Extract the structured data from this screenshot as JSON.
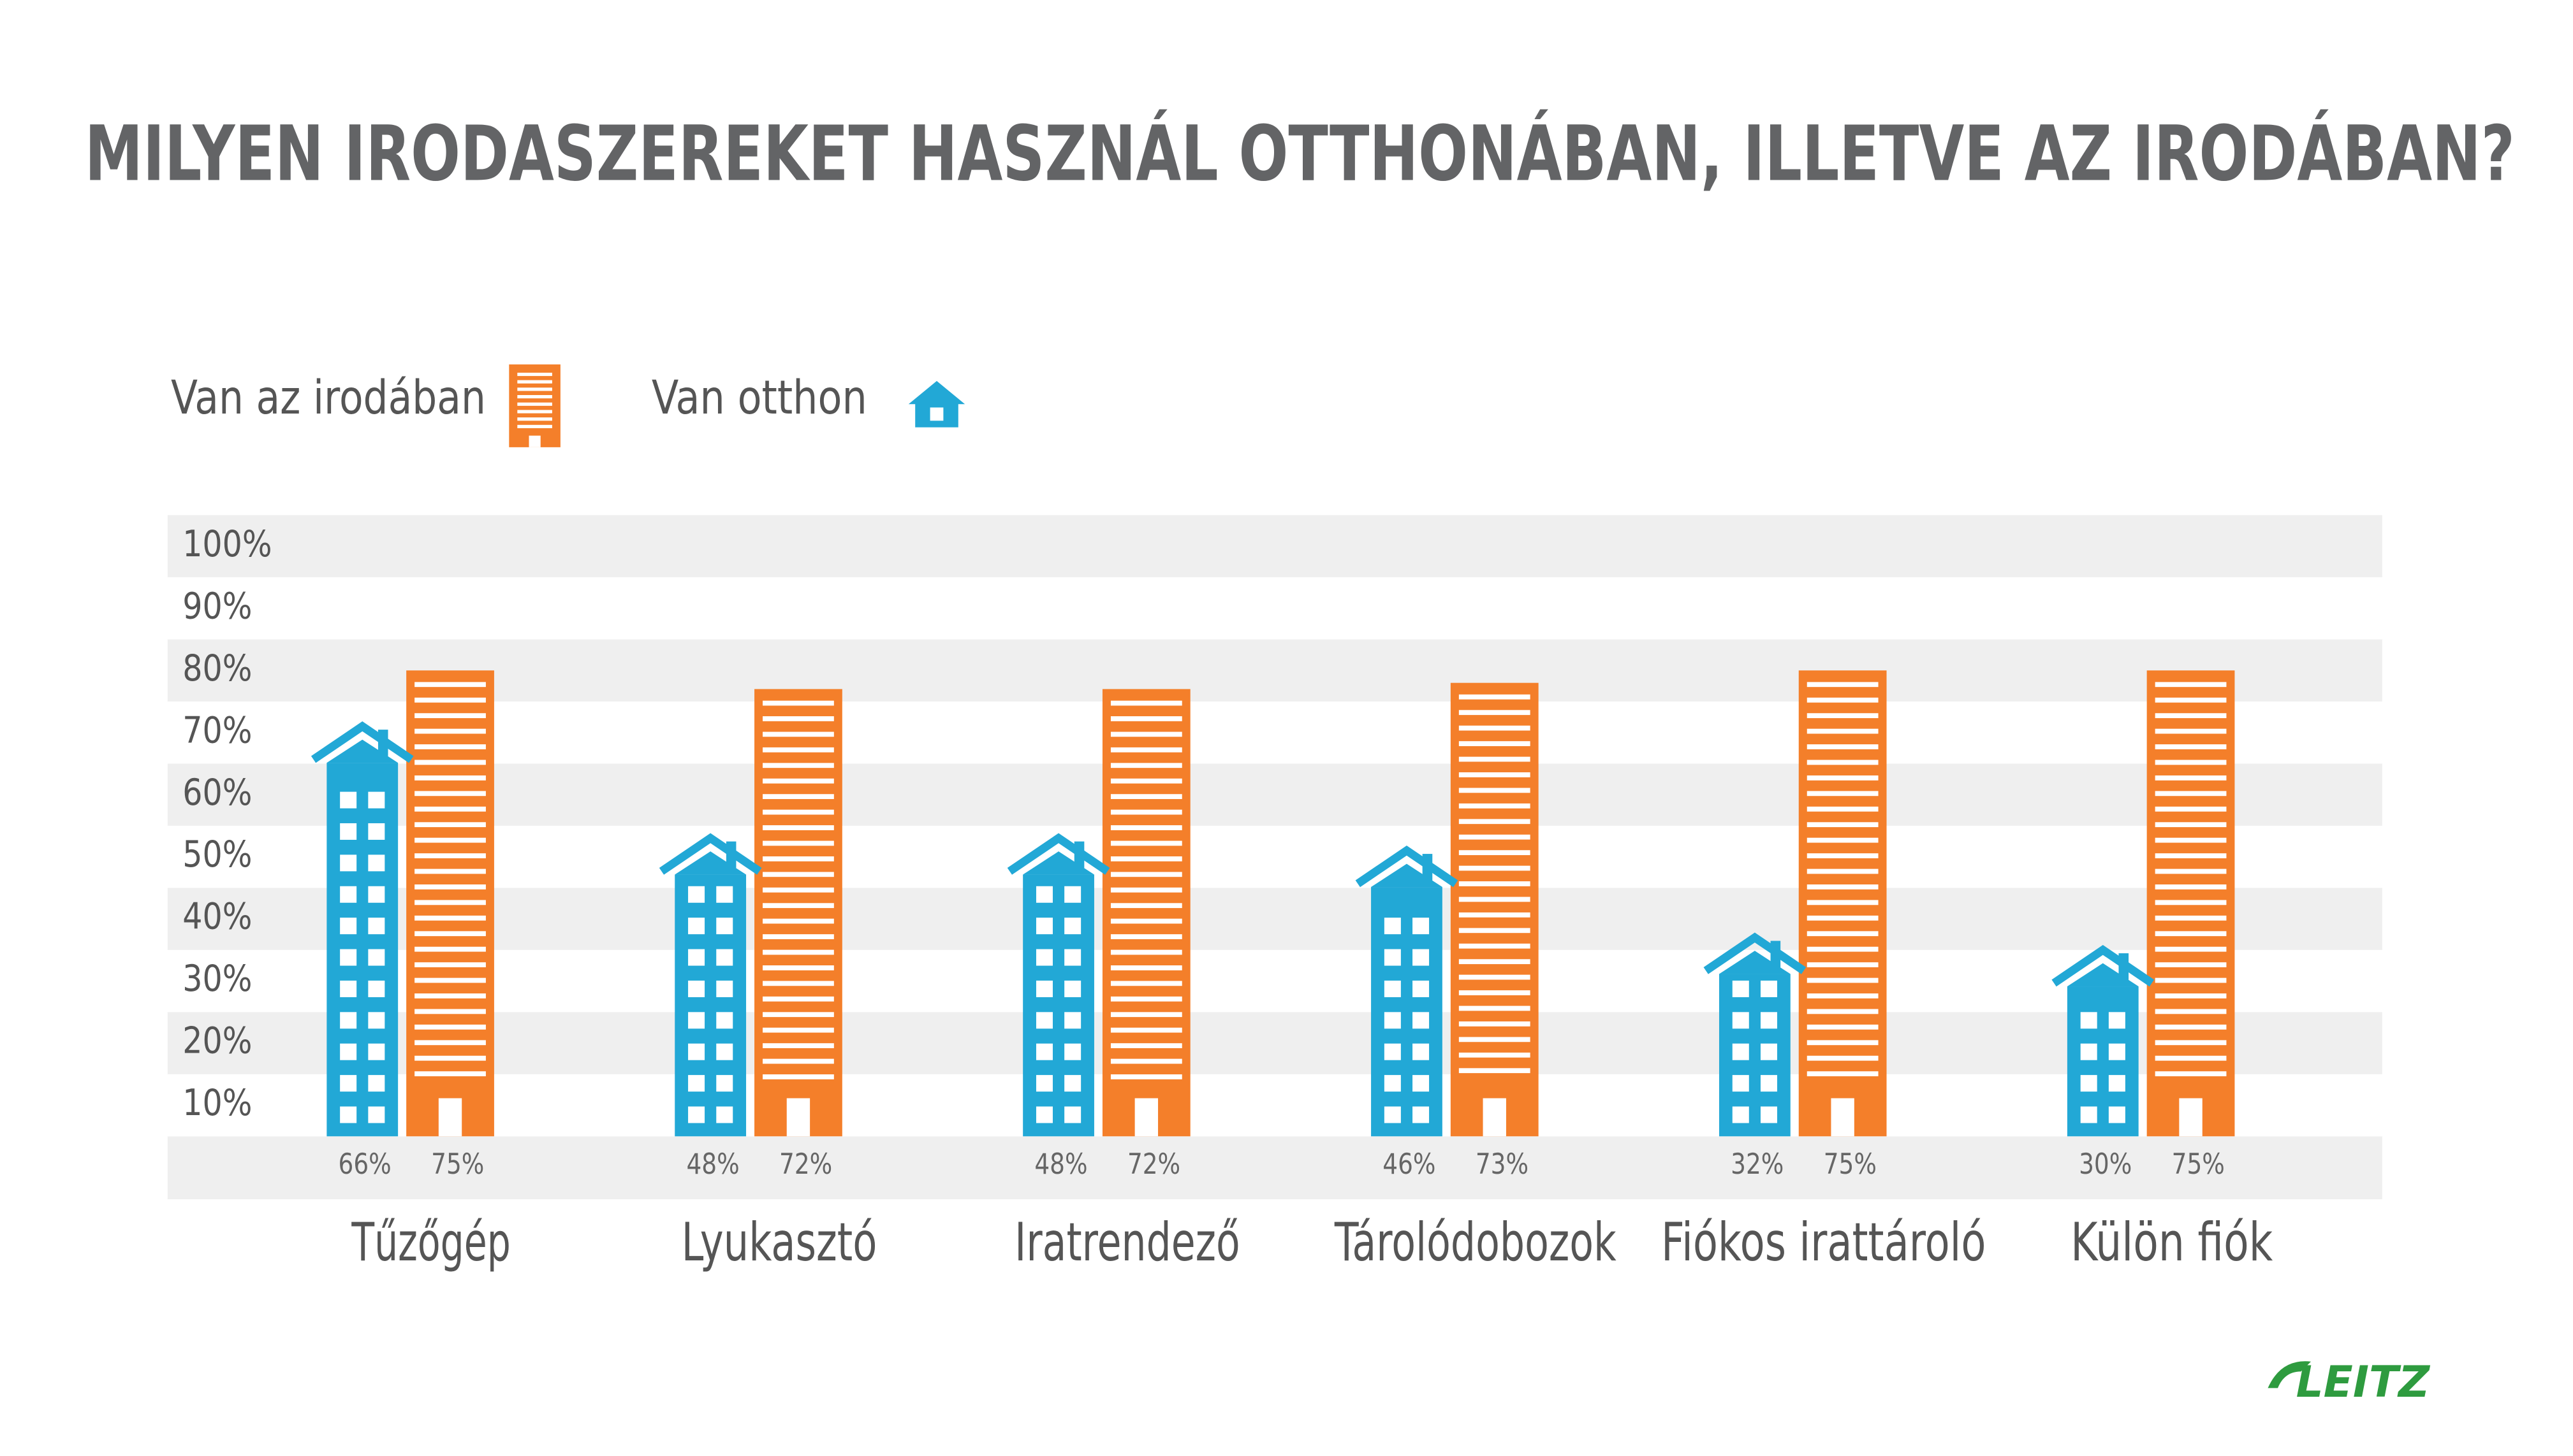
{
  "chart_data": {
    "type": "bar",
    "title": "MILYEN IRODASZEREKET HASZNÁL OTTHONÁBAN, ILLETVE AZ IRODÁBAN?",
    "categories": [
      "Tűzőgép",
      "Lyukasztó",
      "Iratrendező",
      "Tárolódobozok",
      "Fiókos irattároló",
      "Külön fiók"
    ],
    "series": [
      {
        "name": "Van az irodában",
        "color": "#f47f2a",
        "values": [
          75,
          72,
          72,
          73,
          75,
          75
        ],
        "value_labels": [
          "75%",
          "72%",
          "72%",
          "73%",
          "75%",
          "75%"
        ]
      },
      {
        "name": "Van otthon",
        "color": "#22a8d6",
        "values": [
          66,
          48,
          48,
          46,
          32,
          30
        ],
        "value_labels": [
          "66%",
          "48%",
          "48%",
          "46%",
          "32%",
          "30%"
        ]
      }
    ],
    "ylim": [
      0,
      100
    ],
    "yticks": [
      {
        "value": 10,
        "label": "10%"
      },
      {
        "value": 20,
        "label": "20%"
      },
      {
        "value": 30,
        "label": "30%"
      },
      {
        "value": 40,
        "label": "40%"
      },
      {
        "value": 50,
        "label": "50%"
      },
      {
        "value": 60,
        "label": "60%"
      },
      {
        "value": 70,
        "label": "70%"
      },
      {
        "value": 80,
        "label": "80%"
      },
      {
        "value": 90,
        "label": "90%"
      },
      {
        "value": 100,
        "label": "100%"
      }
    ],
    "grid": true,
    "logo": "LEITZ"
  }
}
